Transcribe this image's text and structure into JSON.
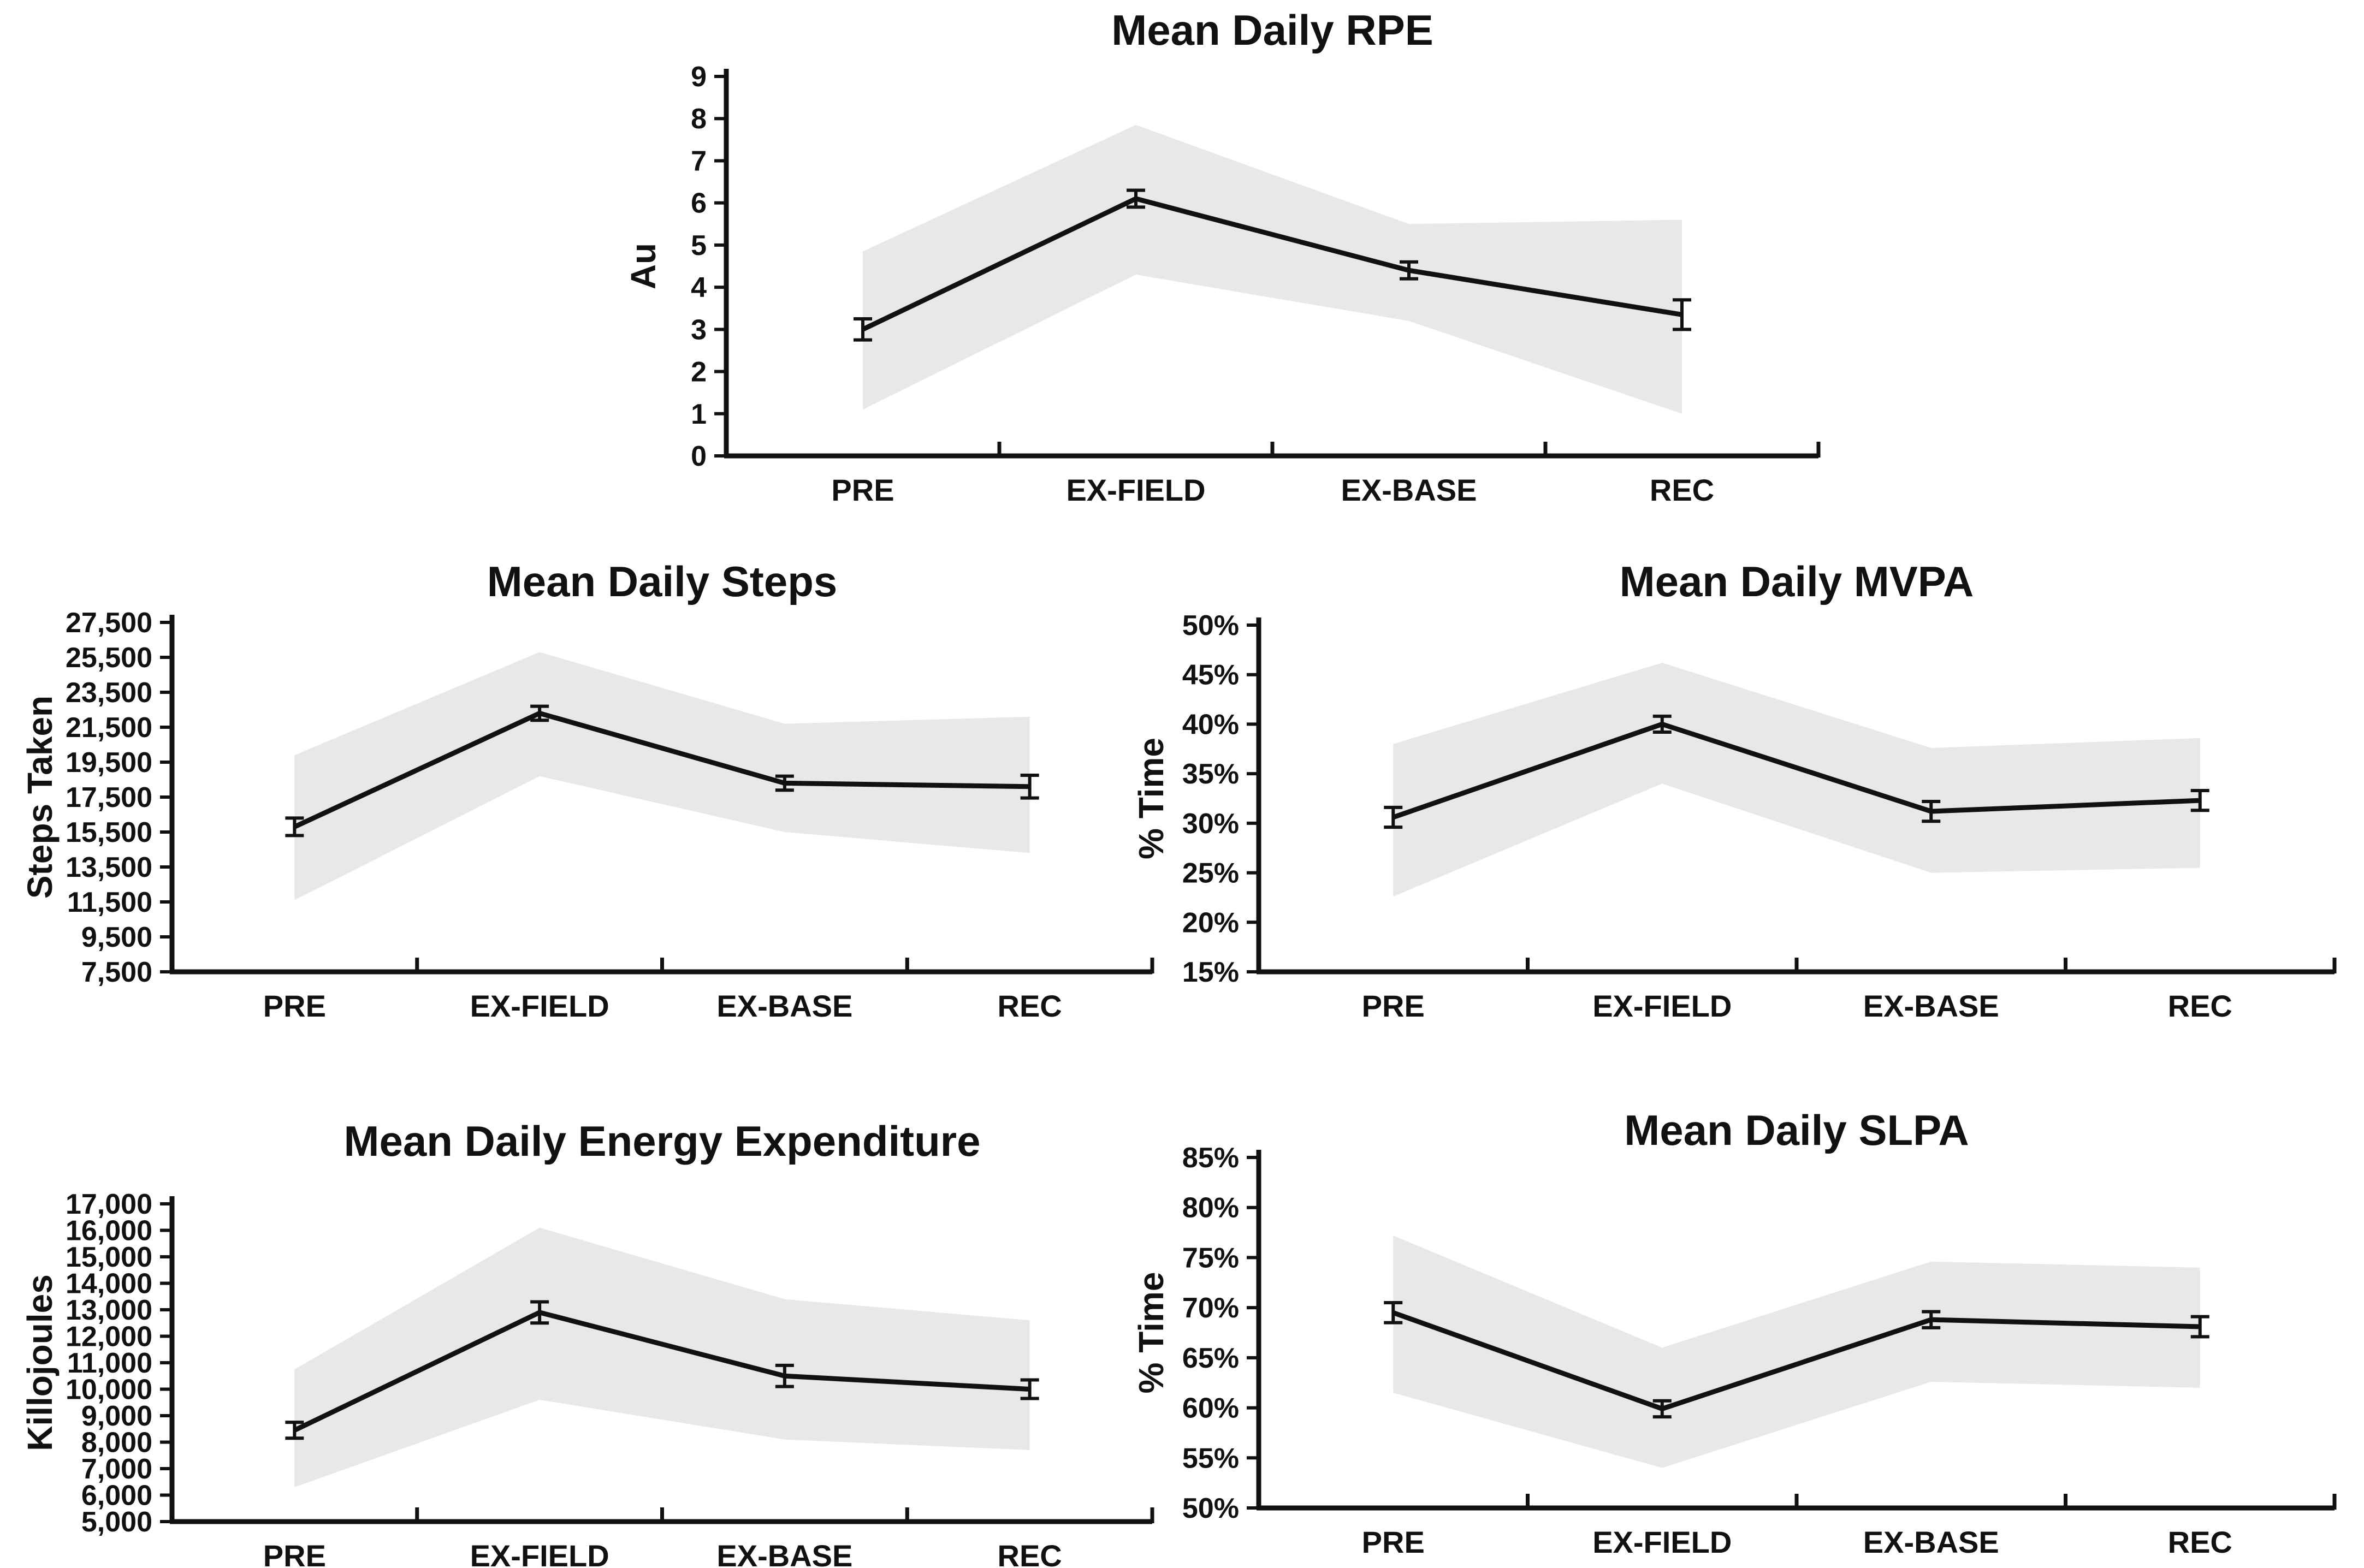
{
  "page": {
    "background": "#ffffff",
    "description_categories": [
      "PRE",
      "EX-FIELD",
      "EX-BASE",
      "REC"
    ]
  },
  "colors": {
    "line": "#111111",
    "axis": "#111111",
    "text": "#111111",
    "band": "#e8e8e8"
  },
  "chart_data": [
    {
      "type": "line",
      "title": "Mean Daily RPE",
      "ylabel": "Au",
      "xlabel": "",
      "categories": [
        "PRE",
        "EX-FIELD",
        "EX-BASE",
        "REC"
      ],
      "values": [
        3.0,
        6.1,
        4.4,
        3.35
      ],
      "errors": [
        0.25,
        0.2,
        0.2,
        0.35
      ],
      "band_upper": [
        4.85,
        7.85,
        5.5,
        5.6
      ],
      "band_lower": [
        1.1,
        4.3,
        3.2,
        1.0
      ],
      "ylim": [
        0,
        9
      ],
      "ytick_step": 1,
      "yformat": "int",
      "grid": false,
      "legend": "none",
      "marker": "error-bars",
      "band": "shaded-range"
    },
    {
      "type": "line",
      "title": "Mean Daily Steps",
      "ylabel": "Steps Taken",
      "xlabel": "",
      "categories": [
        "PRE",
        "EX-FIELD",
        "EX-BASE",
        "REC"
      ],
      "values": [
        15800,
        22300,
        18300,
        18100
      ],
      "errors": [
        500,
        400,
        400,
        650
      ],
      "band_upper": [
        19900,
        25800,
        21700,
        22100
      ],
      "band_lower": [
        11600,
        18700,
        15500,
        14300
      ],
      "ylim": [
        7500,
        27500
      ],
      "ytick_step": 2000,
      "yformat": "comma",
      "grid": false,
      "legend": "none",
      "marker": "error-bars",
      "band": "shaded-range"
    },
    {
      "type": "line",
      "title": "Mean Daily MVPA",
      "ylabel": "% Time",
      "xlabel": "",
      "categories": [
        "PRE",
        "EX-FIELD",
        "EX-BASE",
        "REC"
      ],
      "values": [
        30.6,
        40.0,
        31.2,
        32.3
      ],
      "errors": [
        1.0,
        0.8,
        1.0,
        1.0
      ],
      "band_upper": [
        38.0,
        46.2,
        37.6,
        38.6
      ],
      "band_lower": [
        22.6,
        34.0,
        25.0,
        25.5
      ],
      "ylim": [
        15,
        50
      ],
      "ytick_step": 5,
      "yformat": "percent",
      "grid": false,
      "legend": "none",
      "marker": "error-bars",
      "band": "shaded-range"
    },
    {
      "type": "line",
      "title": "Mean Daily Energy Expenditure",
      "ylabel": "Killojoules",
      "xlabel": "",
      "categories": [
        "PRE",
        "EX-FIELD",
        "EX-BASE",
        "REC"
      ],
      "values": [
        8450,
        12900,
        10500,
        10000
      ],
      "errors": [
        300,
        400,
        400,
        350
      ],
      "band_upper": [
        10750,
        16100,
        13400,
        12600
      ],
      "band_lower": [
        6300,
        9600,
        8100,
        7700
      ],
      "ylim": [
        5000,
        17000
      ],
      "ytick_step": 1000,
      "yformat": "comma",
      "grid": false,
      "legend": "none",
      "marker": "error-bars",
      "band": "shaded-range"
    },
    {
      "type": "line",
      "title": "Mean Daily SLPA",
      "ylabel": "% Time",
      "xlabel": "",
      "categories": [
        "PRE",
        "EX-FIELD",
        "EX-BASE",
        "REC"
      ],
      "values": [
        69.5,
        59.9,
        68.8,
        68.1
      ],
      "errors": [
        1.0,
        0.8,
        0.8,
        1.0
      ],
      "band_upper": [
        77.2,
        66.0,
        74.6,
        74.0
      ],
      "band_lower": [
        61.5,
        54.0,
        62.6,
        62.0
      ],
      "ylim": [
        50,
        85
      ],
      "ytick_step": 5,
      "yformat": "percent",
      "grid": false,
      "legend": "none",
      "marker": "error-bars",
      "band": "shaded-range"
    }
  ]
}
